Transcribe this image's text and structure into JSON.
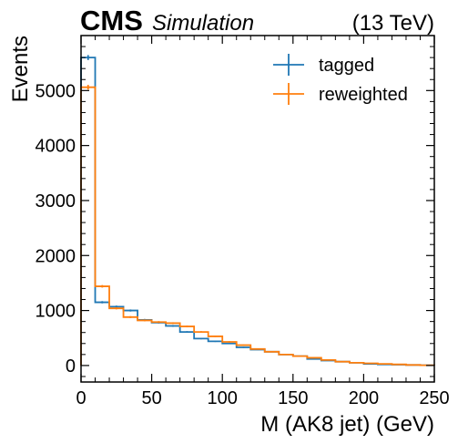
{
  "header": {
    "experiment": "CMS",
    "tag": "Simulation",
    "energy": "(13 TeV)"
  },
  "colors": {
    "tagged": "#1f77b4",
    "reweighted": "#ff7f0e"
  },
  "chart_data": {
    "type": "line",
    "drawstyle": "step-histogram",
    "xlabel": "M (AK8 jet) (GeV)",
    "ylabel": "Events",
    "xlim": [
      0,
      250
    ],
    "ylim": [
      -300,
      6000
    ],
    "xticks": [
      0,
      50,
      100,
      150,
      200,
      250
    ],
    "yticks": [
      0,
      1000,
      2000,
      3000,
      4000,
      5000
    ],
    "legend_position": "top-right",
    "bin_edges": [
      0,
      10,
      20,
      30,
      40,
      50,
      60,
      70,
      80,
      90,
      100,
      110,
      120,
      130,
      140,
      150,
      160,
      170,
      180,
      190,
      200,
      210,
      220,
      230,
      240,
      250
    ],
    "series": [
      {
        "name": "tagged",
        "values": [
          5600,
          1150,
          1070,
          1000,
          830,
          780,
          720,
          610,
          490,
          440,
          400,
          330,
          290,
          250,
          200,
          170,
          120,
          90,
          70,
          50,
          30,
          20,
          15,
          10,
          5
        ]
      },
      {
        "name": "reweighted",
        "values": [
          5060,
          1440,
          1040,
          880,
          820,
          790,
          770,
          710,
          610,
          530,
          430,
          370,
          300,
          250,
          200,
          170,
          140,
          100,
          70,
          50,
          40,
          30,
          20,
          10,
          5
        ]
      }
    ]
  }
}
